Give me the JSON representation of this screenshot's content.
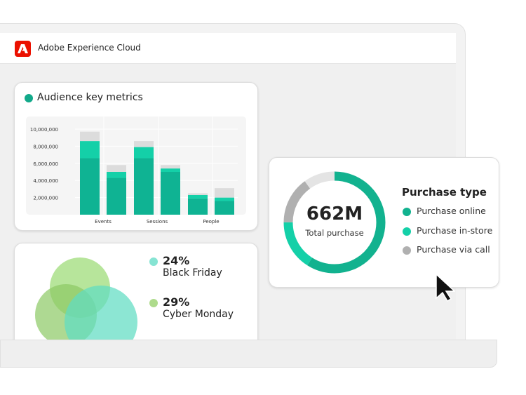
{
  "app": {
    "title": "Adobe Experience Cloud",
    "logo": "adobe-logo"
  },
  "audience": {
    "title": "Audience key metrics",
    "dot_color": "#12a98a"
  },
  "chart_data": {
    "type": "bar",
    "stacked": true,
    "categories": [
      "Events",
      "Sessions",
      "People"
    ],
    "yticks": [
      "10,000,000",
      "8,000,000",
      "6,000,000",
      "4,000,000",
      "2,000,000"
    ],
    "ylim": [
      0,
      10000000
    ],
    "grid": true,
    "bars": [
      {
        "category": "Events",
        "segments": [
          6600000,
          2000000,
          1100000
        ]
      },
      {
        "category": "Events",
        "segments": [
          4300000,
          700000,
          800000
        ]
      },
      {
        "category": "Sessions",
        "segments": [
          6600000,
          1300000,
          700000
        ]
      },
      {
        "category": "Sessions",
        "segments": [
          5000000,
          400000,
          400000
        ]
      },
      {
        "category": "People",
        "segments": [
          1900000,
          400000,
          200000
        ]
      },
      {
        "category": "People",
        "segments": [
          1600000,
          400000,
          1100000
        ]
      }
    ],
    "colors": [
      "#0fb393",
      "#14d0a8",
      "#dcdcdc"
    ]
  },
  "segments": {
    "items": [
      {
        "value": "24%",
        "label": "Black Friday",
        "color": "#86e4d3"
      },
      {
        "value": "29%",
        "label": "Cyber Monday",
        "color": "#aedb8c"
      }
    ]
  },
  "purchase": {
    "total": "662M",
    "total_label": "Total purchase",
    "title": "Purchase type",
    "donut": [
      {
        "label": "Purchase online",
        "fraction": 0.59,
        "color": "#12b28f"
      },
      {
        "label": "Purchase in-store",
        "fraction": 0.16,
        "color": "#14d0a8"
      },
      {
        "label": "Purchase via call",
        "fraction": 0.15,
        "color": "#b0b0b0"
      },
      {
        "label": "",
        "fraction": 0.1,
        "color": "#e4e4e4"
      }
    ]
  }
}
